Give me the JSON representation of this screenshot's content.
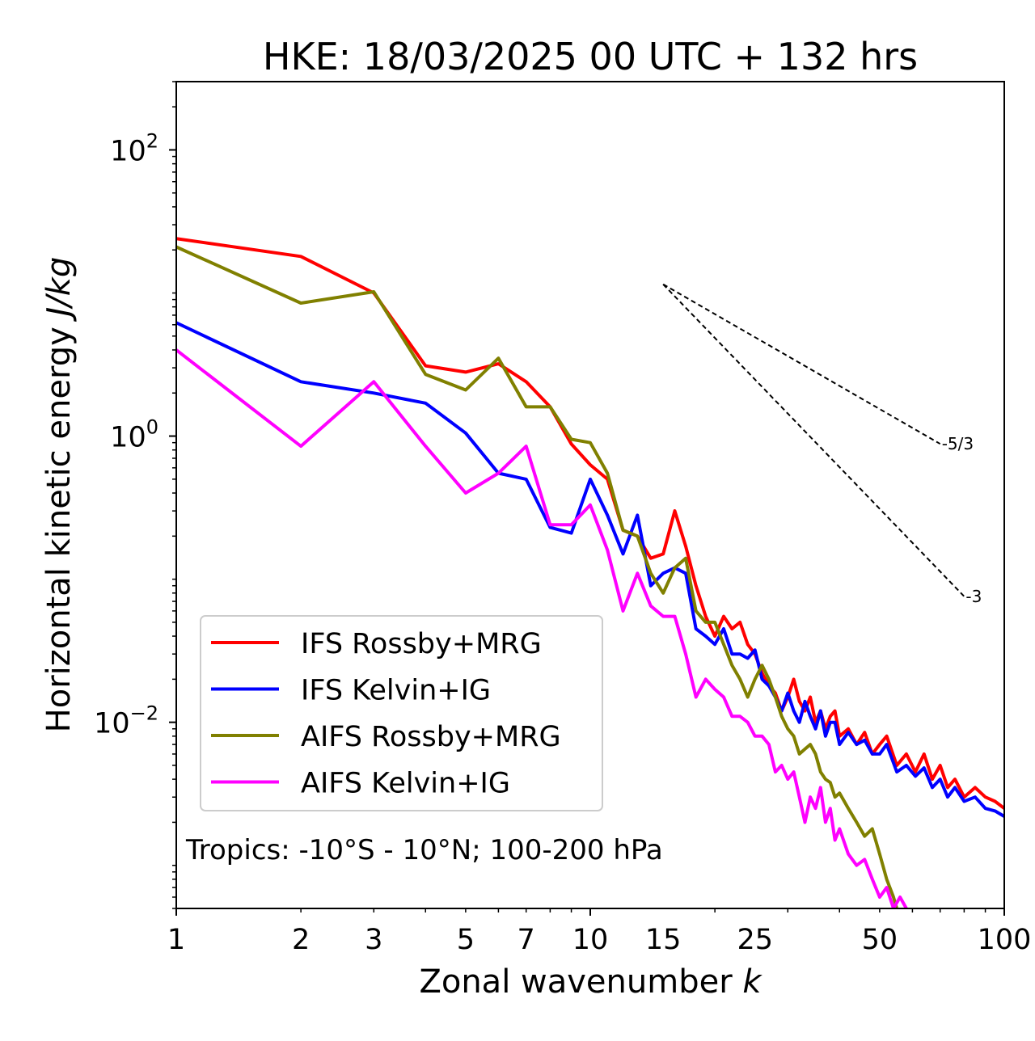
{
  "chart_data": {
    "type": "line",
    "title": "HKE: 18/03/2025 00 UTC + 132 hrs",
    "xlabel": "Zonal wavenumber ",
    "xlabel_var": "k",
    "ylabel": "Horizontal kinetic energy ",
    "ylabel_unit": "J/kg",
    "xscale": "log",
    "yscale": "log",
    "xlim": [
      1,
      100
    ],
    "ylim": [
      0.0005,
      300
    ],
    "xticks": [
      1,
      2,
      3,
      5,
      7,
      10,
      15,
      25,
      50,
      100
    ],
    "xtick_labels": [
      "1",
      "2",
      "3",
      "5",
      "7",
      "10",
      "15",
      "25",
      "50",
      "100"
    ],
    "yticks": [
      0.01,
      1,
      100
    ],
    "ytick_base": "10",
    "ytick_exponents": [
      "−2",
      "0",
      "2"
    ],
    "legend_position": "lower-left",
    "annotation": "Tropics: -10°S - 10°N; 100-200 hPa",
    "reference_lines": [
      {
        "label": "-5/3",
        "slope": -1.6667,
        "x": [
          15,
          70
        ],
        "y0": 11.5
      },
      {
        "label": "-3",
        "slope": -3,
        "x": [
          15,
          80
        ],
        "y0": 11.5
      }
    ],
    "series": [
      {
        "name": "IFS Rossby+MRG",
        "color": "#ff0000",
        "x": [
          1,
          2,
          3,
          4,
          5,
          6,
          7,
          8,
          9,
          10,
          11,
          12,
          13,
          14,
          15,
          16,
          17,
          18,
          19,
          20,
          21,
          22,
          23,
          24,
          25,
          26,
          27,
          28,
          29,
          30,
          31,
          32,
          33,
          34,
          35,
          36,
          37,
          38,
          39,
          40,
          42,
          44,
          46,
          48,
          50,
          52,
          55,
          58,
          61,
          64,
          67,
          70,
          73,
          76,
          80,
          85,
          90,
          95,
          100
        ],
        "y": [
          24,
          18,
          10,
          3.1,
          2.8,
          3.2,
          2.4,
          1.6,
          0.88,
          0.63,
          0.5,
          0.22,
          0.2,
          0.14,
          0.15,
          0.3,
          0.17,
          0.09,
          0.055,
          0.04,
          0.055,
          0.045,
          0.05,
          0.035,
          0.03,
          0.022,
          0.018,
          0.016,
          0.012,
          0.015,
          0.02,
          0.014,
          0.012,
          0.015,
          0.01,
          0.012,
          0.009,
          0.011,
          0.012,
          0.008,
          0.009,
          0.007,
          0.0085,
          0.006,
          0.007,
          0.008,
          0.005,
          0.006,
          0.0045,
          0.006,
          0.004,
          0.005,
          0.0035,
          0.004,
          0.003,
          0.0035,
          0.003,
          0.0028,
          0.0025
        ]
      },
      {
        "name": "IFS Kelvin+IG",
        "color": "#0000ff",
        "x": [
          1,
          2,
          3,
          4,
          5,
          6,
          7,
          8,
          9,
          10,
          11,
          12,
          13,
          14,
          15,
          16,
          17,
          18,
          19,
          20,
          21,
          22,
          23,
          24,
          25,
          26,
          27,
          28,
          29,
          30,
          31,
          32,
          33,
          34,
          35,
          36,
          37,
          38,
          39,
          40,
          42,
          44,
          46,
          48,
          50,
          52,
          55,
          58,
          61,
          64,
          67,
          70,
          73,
          76,
          80,
          85,
          90,
          95,
          100
        ],
        "y": [
          6.2,
          2.4,
          2.0,
          1.7,
          1.05,
          0.55,
          0.5,
          0.23,
          0.21,
          0.5,
          0.28,
          0.15,
          0.28,
          0.09,
          0.11,
          0.12,
          0.11,
          0.045,
          0.04,
          0.035,
          0.045,
          0.03,
          0.03,
          0.028,
          0.032,
          0.02,
          0.018,
          0.015,
          0.012,
          0.016,
          0.012,
          0.01,
          0.014,
          0.011,
          0.009,
          0.012,
          0.008,
          0.01,
          0.01,
          0.007,
          0.0085,
          0.007,
          0.0075,
          0.006,
          0.006,
          0.007,
          0.0045,
          0.005,
          0.0042,
          0.0048,
          0.0035,
          0.004,
          0.003,
          0.0035,
          0.0028,
          0.003,
          0.0025,
          0.0024,
          0.0022
        ]
      },
      {
        "name": "AIFS Rossby+MRG",
        "color": "#808000",
        "x": [
          1,
          2,
          3,
          4,
          5,
          6,
          7,
          8,
          9,
          10,
          11,
          12,
          13,
          14,
          15,
          16,
          17,
          18,
          19,
          20,
          21,
          22,
          23,
          24,
          25,
          26,
          27,
          28,
          29,
          30,
          31,
          32,
          33,
          34,
          35,
          36,
          37,
          38,
          39,
          40,
          42,
          44,
          46,
          48,
          50,
          52,
          54,
          55
        ],
        "y": [
          21,
          8.5,
          10.2,
          2.7,
          2.1,
          3.5,
          1.6,
          1.6,
          0.95,
          0.9,
          0.55,
          0.22,
          0.2,
          0.11,
          0.08,
          0.12,
          0.14,
          0.06,
          0.05,
          0.05,
          0.035,
          0.025,
          0.02,
          0.015,
          0.02,
          0.025,
          0.02,
          0.015,
          0.011,
          0.009,
          0.008,
          0.006,
          0.0065,
          0.007,
          0.006,
          0.0045,
          0.004,
          0.0038,
          0.003,
          0.0032,
          0.0025,
          0.002,
          0.0016,
          0.0018,
          0.0012,
          0.0008,
          0.0006,
          0.0005
        ]
      },
      {
        "name": "AIFS Kelvin+IG",
        "color": "#ff00ff",
        "x": [
          1,
          2,
          3,
          4,
          5,
          6,
          7,
          8,
          9,
          10,
          11,
          12,
          13,
          14,
          15,
          16,
          17,
          18,
          19,
          20,
          21,
          22,
          23,
          24,
          25,
          26,
          27,
          28,
          29,
          30,
          31,
          32,
          33,
          34,
          35,
          36,
          37,
          38,
          39,
          40,
          42,
          44,
          46,
          48,
          50,
          52,
          54,
          56,
          58
        ],
        "y": [
          4.0,
          0.85,
          2.4,
          0.85,
          0.4,
          0.55,
          0.85,
          0.24,
          0.24,
          0.33,
          0.16,
          0.06,
          0.11,
          0.065,
          0.055,
          0.055,
          0.03,
          0.015,
          0.02,
          0.017,
          0.015,
          0.011,
          0.011,
          0.01,
          0.008,
          0.008,
          0.007,
          0.0045,
          0.005,
          0.004,
          0.0045,
          0.003,
          0.002,
          0.003,
          0.0025,
          0.0035,
          0.002,
          0.0025,
          0.0015,
          0.0018,
          0.0012,
          0.001,
          0.0011,
          0.0008,
          0.0006,
          0.0007,
          0.0005,
          0.0006,
          0.0005
        ]
      }
    ]
  }
}
